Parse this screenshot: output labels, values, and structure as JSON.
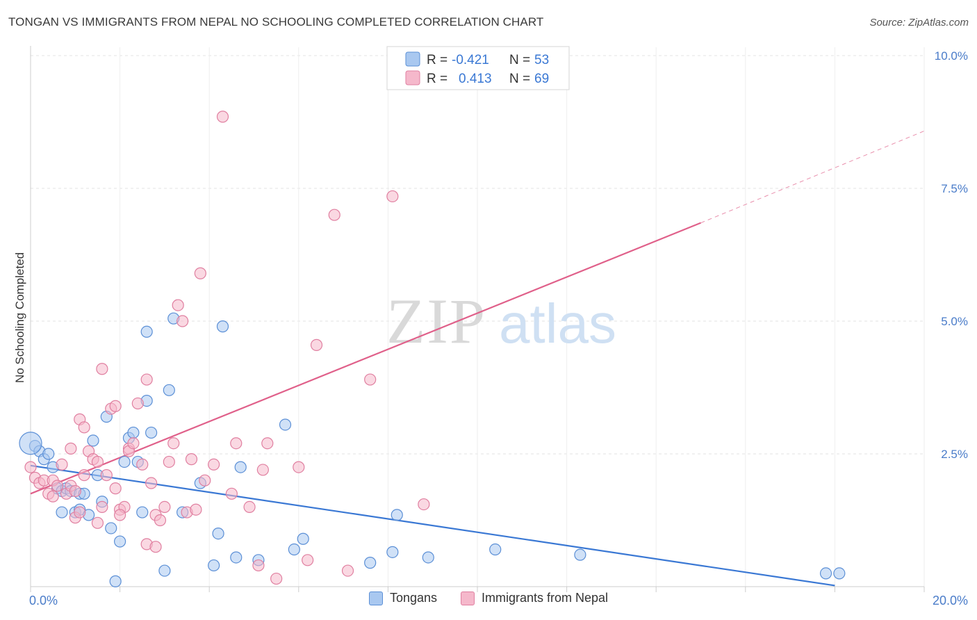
{
  "title": "TONGAN VS IMMIGRANTS FROM NEPAL NO SCHOOLING COMPLETED CORRELATION CHART",
  "source": "Source: ZipAtlas.com",
  "watermark": {
    "zip": "ZIP",
    "atlas": "atlas"
  },
  "legend_top": [
    {
      "r_label": "R = ",
      "r_value": "-0.421",
      "n_label": "N = ",
      "n_value": "53"
    },
    {
      "r_label": "R = ",
      "r_value": "0.413",
      "n_label": "N = ",
      "n_value": "69"
    }
  ],
  "legend_bottom": [
    "Tongans",
    "Immigrants from Nepal"
  ],
  "colors": {
    "tongans_fill": "#a9c8f0",
    "tongans_stroke": "#5b8fd6",
    "tongans_line": "#3a78d4",
    "nepal_fill": "#f5b8cb",
    "nepal_stroke": "#e07fa0",
    "nepal_line": "#e0608a",
    "tick_label": "#4a7cc9",
    "grid": "#e3e3e3"
  },
  "chart_data": {
    "type": "scatter",
    "title": "TONGAN VS IMMIGRANTS FROM NEPAL NO SCHOOLING COMPLETED CORRELATION CHART",
    "xlabel": "",
    "ylabel": "No Schooling Completed",
    "xlim": [
      0,
      20
    ],
    "ylim": [
      0,
      10
    ],
    "x_tick_labels": [
      "0.0%",
      "20.0%"
    ],
    "y_ticks": [
      2.5,
      5.0,
      7.5,
      10.0
    ],
    "y_tick_labels": [
      "2.5%",
      "5.0%",
      "7.5%",
      "10.0%"
    ],
    "grid": true,
    "legend_placement": "top-center",
    "series": [
      {
        "name": "Tongans",
        "r": -0.421,
        "n": 53,
        "trend": {
          "x0": 0,
          "y0": 2.28,
          "x1": 18,
          "y1": 0.02
        },
        "points": [
          [
            0.1,
            2.65
          ],
          [
            0.2,
            2.55
          ],
          [
            0.3,
            2.4
          ],
          [
            0.4,
            2.5
          ],
          [
            0.5,
            2.25
          ],
          [
            0.6,
            1.85
          ],
          [
            0.7,
            1.8
          ],
          [
            0.8,
            1.85
          ],
          [
            0.7,
            1.4
          ],
          [
            0.9,
            1.8
          ],
          [
            1.0,
            1.4
          ],
          [
            1.1,
            1.45
          ],
          [
            1.1,
            1.75
          ],
          [
            1.2,
            1.75
          ],
          [
            1.3,
            1.35
          ],
          [
            1.4,
            2.75
          ],
          [
            1.5,
            2.1
          ],
          [
            1.6,
            1.6
          ],
          [
            1.7,
            3.2
          ],
          [
            1.8,
            1.1
          ],
          [
            1.9,
            0.1
          ],
          [
            2.0,
            0.85
          ],
          [
            2.1,
            2.35
          ],
          [
            2.2,
            2.8
          ],
          [
            2.3,
            2.9
          ],
          [
            2.4,
            2.35
          ],
          [
            2.5,
            1.4
          ],
          [
            2.6,
            4.8
          ],
          [
            2.6,
            3.5
          ],
          [
            2.7,
            2.9
          ],
          [
            3.0,
            0.3
          ],
          [
            3.1,
            3.7
          ],
          [
            3.2,
            5.05
          ],
          [
            3.4,
            1.4
          ],
          [
            3.8,
            1.95
          ],
          [
            4.1,
            0.4
          ],
          [
            4.2,
            1.0
          ],
          [
            4.3,
            4.9
          ],
          [
            4.6,
            0.55
          ],
          [
            4.7,
            2.25
          ],
          [
            5.1,
            0.5
          ],
          [
            5.7,
            3.05
          ],
          [
            5.9,
            0.7
          ],
          [
            6.1,
            0.9
          ],
          [
            7.6,
            0.45
          ],
          [
            8.1,
            0.65
          ],
          [
            8.2,
            1.35
          ],
          [
            8.9,
            0.55
          ],
          [
            10.4,
            0.7
          ],
          [
            12.3,
            0.6
          ],
          [
            17.8,
            0.25
          ],
          [
            18.1,
            0.25
          ],
          [
            0.0,
            2.7
          ]
        ]
      },
      {
        "name": "Immigrants from Nepal",
        "r": 0.413,
        "n": 69,
        "trend": {
          "x0": 0,
          "y0": 1.75,
          "x1": 15,
          "y1": 6.85
        },
        "trend_dashed": {
          "x0": 15,
          "y0": 6.85,
          "x1": 20,
          "y1": 8.58
        },
        "points": [
          [
            0.0,
            2.25
          ],
          [
            0.1,
            2.05
          ],
          [
            0.2,
            1.95
          ],
          [
            0.3,
            2.0
          ],
          [
            0.4,
            1.75
          ],
          [
            0.5,
            2.0
          ],
          [
            0.5,
            1.7
          ],
          [
            0.6,
            1.9
          ],
          [
            0.7,
            2.3
          ],
          [
            0.8,
            1.75
          ],
          [
            0.9,
            1.9
          ],
          [
            1.0,
            1.3
          ],
          [
            1.0,
            1.8
          ],
          [
            1.1,
            1.4
          ],
          [
            1.1,
            3.15
          ],
          [
            1.2,
            3.0
          ],
          [
            1.3,
            2.55
          ],
          [
            1.4,
            2.4
          ],
          [
            1.5,
            2.35
          ],
          [
            1.6,
            4.1
          ],
          [
            1.7,
            2.1
          ],
          [
            1.8,
            3.35
          ],
          [
            1.9,
            3.4
          ],
          [
            1.9,
            1.85
          ],
          [
            2.0,
            1.45
          ],
          [
            2.1,
            1.5
          ],
          [
            2.2,
            2.6
          ],
          [
            2.2,
            2.55
          ],
          [
            2.3,
            2.7
          ],
          [
            2.4,
            3.45
          ],
          [
            2.5,
            2.3
          ],
          [
            2.6,
            3.9
          ],
          [
            2.6,
            0.8
          ],
          [
            2.7,
            1.95
          ],
          [
            2.8,
            1.35
          ],
          [
            2.9,
            1.25
          ],
          [
            3.0,
            1.5
          ],
          [
            3.1,
            2.35
          ],
          [
            3.2,
            2.7
          ],
          [
            3.3,
            5.3
          ],
          [
            3.4,
            5.0
          ],
          [
            3.5,
            1.4
          ],
          [
            3.6,
            2.4
          ],
          [
            3.8,
            5.9
          ],
          [
            3.9,
            2.0
          ],
          [
            4.1,
            2.3
          ],
          [
            4.5,
            1.75
          ],
          [
            4.6,
            2.7
          ],
          [
            4.9,
            1.5
          ],
          [
            5.1,
            0.4
          ],
          [
            5.2,
            2.2
          ],
          [
            5.3,
            2.7
          ],
          [
            5.5,
            0.15
          ],
          [
            6.0,
            2.25
          ],
          [
            6.2,
            0.5
          ],
          [
            6.4,
            4.55
          ],
          [
            6.8,
            7.0
          ],
          [
            7.1,
            0.3
          ],
          [
            7.6,
            3.9
          ],
          [
            8.1,
            7.35
          ],
          [
            8.8,
            1.55
          ],
          [
            1.6,
            1.5
          ],
          [
            2.0,
            1.35
          ],
          [
            1.2,
            2.1
          ],
          [
            0.9,
            2.6
          ],
          [
            4.3,
            8.85
          ],
          [
            2.8,
            0.75
          ],
          [
            1.5,
            1.2
          ],
          [
            3.7,
            1.45
          ]
        ]
      }
    ]
  }
}
